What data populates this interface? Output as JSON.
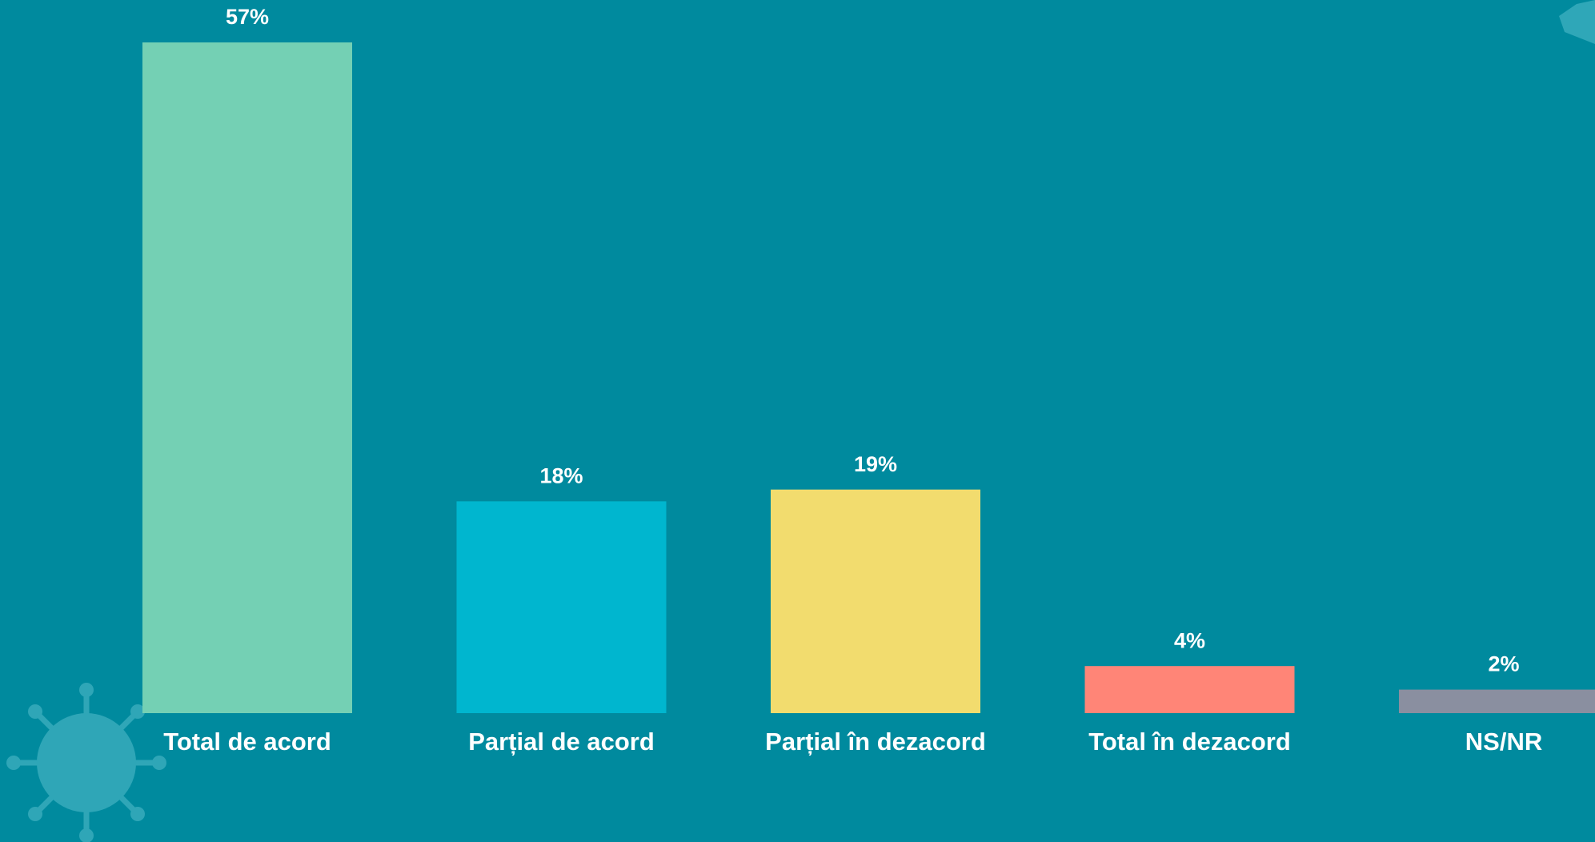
{
  "chart_data": {
    "type": "bar",
    "categories": [
      "Total de acord",
      "Parțial de acord",
      "Parțial în dezacord",
      "Total în dezacord",
      "NS/NR"
    ],
    "values": [
      57,
      18,
      19,
      4,
      2
    ],
    "value_labels": [
      "57%",
      "18%",
      "19%",
      "4%",
      "2%"
    ],
    "colors": [
      "#74d0b4",
      "#00b6cf",
      "#f2dc6e",
      "#ff8577",
      "#8a8fa0"
    ]
  }
}
